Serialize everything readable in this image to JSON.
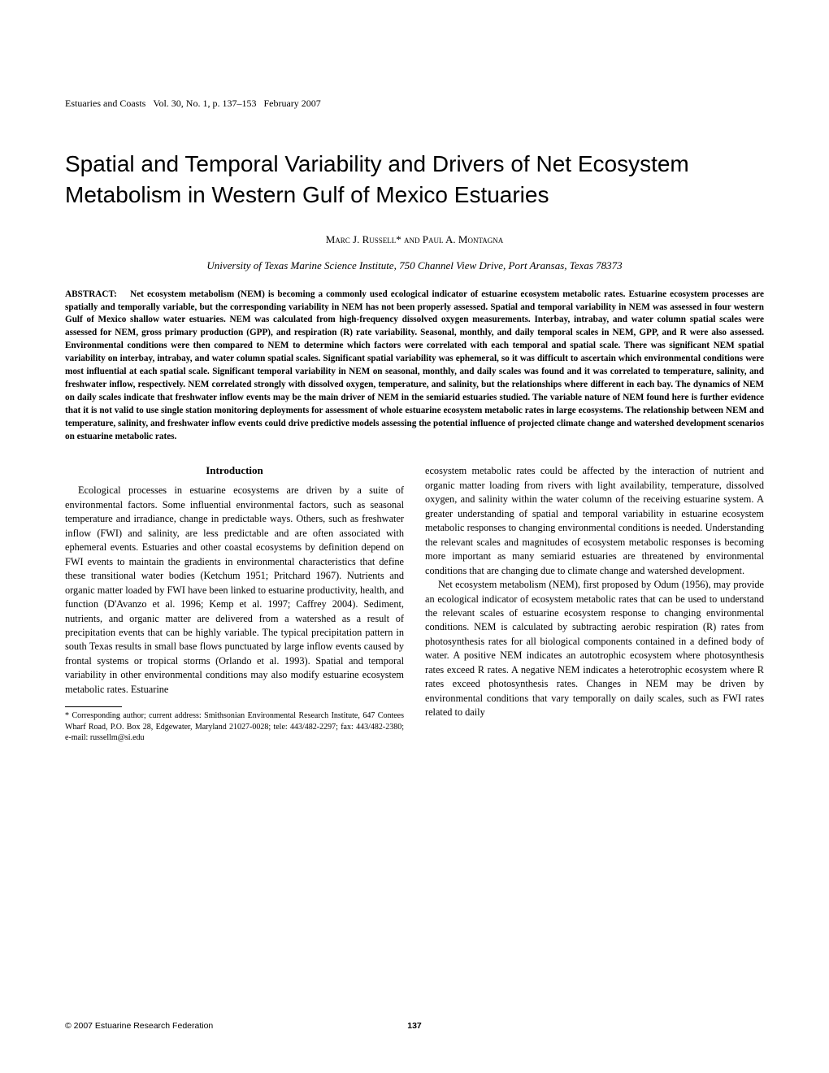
{
  "running_header": {
    "journal": "Estuaries and Coasts",
    "vol_issue_pages": "Vol. 30, No. 1, p. 137–153",
    "date": "February 2007"
  },
  "title": "Spatial and Temporal Variability and Drivers of Net Ecosystem Metabolism in Western Gulf of Mexico Estuaries",
  "authors": "Marc J. Russell* and Paul A. Montagna",
  "affiliation": "University of Texas Marine Science Institute, 750 Channel View Drive, Port Aransas, Texas 78373",
  "abstract_label": "ABSTRACT:",
  "abstract_body": "Net ecosystem metabolism (NEM) is becoming a commonly used ecological indicator of estuarine ecosystem metabolic rates. Estuarine ecosystem processes are spatially and temporally variable, but the corresponding variability in NEM has not been properly assessed. Spatial and temporal variability in NEM was assessed in four western Gulf of Mexico shallow water estuaries. NEM was calculated from high-frequency dissolved oxygen measurements. Interbay, intrabay, and water column spatial scales were assessed for NEM, gross primary production (GPP), and respiration (R) rate variability. Seasonal, monthly, and daily temporal scales in NEM, GPP, and R were also assessed. Environmental conditions were then compared to NEM to determine which factors were correlated with each temporal and spatial scale. There was significant NEM spatial variability on interbay, intrabay, and water column spatial scales. Significant spatial variability was ephemeral, so it was difficult to ascertain which environmental conditions were most influential at each spatial scale. Significant temporal variability in NEM on seasonal, monthly, and daily scales was found and it was correlated to temperature, salinity, and freshwater inflow, respectively. NEM correlated strongly with dissolved oxygen, temperature, and salinity, but the relationships where different in each bay. The dynamics of NEM on daily scales indicate that freshwater inflow events may be the main driver of NEM in the semiarid estuaries studied. The variable nature of NEM found here is further evidence that it is not valid to use single station monitoring deployments for assessment of whole estuarine ecosystem metabolic rates in large ecosystems. The relationship between NEM and temperature, salinity, and freshwater inflow events could drive predictive models assessing the potential influence of projected climate change and watershed development scenarios on estuarine metabolic rates.",
  "intro_heading": "Introduction",
  "col1_para1": "Ecological processes in estuarine ecosystems are driven by a suite of environmental factors. Some influential environmental factors, such as seasonal temperature and irradiance, change in predictable ways. Others, such as freshwater inflow (FWI) and salinity, are less predictable and are often associated with ephemeral events. Estuaries and other coastal ecosystems by definition depend on FWI events to maintain the gradients in environmental characteristics that define these transitional water bodies (Ketchum 1951; Pritchard 1967). Nutrients and organic matter loaded by FWI have been linked to estuarine productivity, health, and function (D'Avanzo et al. 1996; Kemp et al. 1997; Caffrey 2004). Sediment, nutrients, and organic matter are delivered from a watershed as a result of precipitation events that can be highly variable. The typical precipitation pattern in south Texas results in small base flows punctuated by large inflow events caused by frontal systems or tropical storms (Orlando et al. 1993). Spatial and temporal variability in other environmental conditions may also modify estuarine ecosystem metabolic rates. Estuarine",
  "footnote": "* Corresponding author; current address: Smithsonian Environmental Research Institute, 647 Contees Wharf Road, P.O. Box 28, Edgewater, Maryland 21027-0028; tele: 443/482-2297; fax: 443/482-2380; e-mail: russellm@si.edu",
  "col2_para1": "ecosystem metabolic rates could be affected by the interaction of nutrient and organic matter loading from rivers with light availability, temperature, dissolved oxygen, and salinity within the water column of the receiving estuarine system. A greater understanding of spatial and temporal variability in estuarine ecosystem metabolic responses to changing environmental conditions is needed. Understanding the relevant scales and magnitudes of ecosystem metabolic responses is becoming more important as many semiarid estuaries are threatened by environmental conditions that are changing due to climate change and watershed development.",
  "col2_para2": "Net ecosystem metabolism (NEM), first proposed by Odum (1956), may provide an ecological indicator of ecosystem metabolic rates that can be used to understand the relevant scales of estuarine ecosystem response to changing environmental conditions. NEM is calculated by subtracting aerobic respiration (R) rates from photosynthesis rates for all biological components contained in a defined body of water. A positive NEM indicates an autotrophic ecosystem where photosynthesis rates exceed R rates. A negative NEM indicates a heterotrophic ecosystem where R rates exceed photosynthesis rates. Changes in NEM may be driven by environmental conditions that vary temporally on daily scales, such as FWI rates related to daily",
  "footer": {
    "copyright": "© 2007 Estuarine Research Federation",
    "page": "137"
  }
}
